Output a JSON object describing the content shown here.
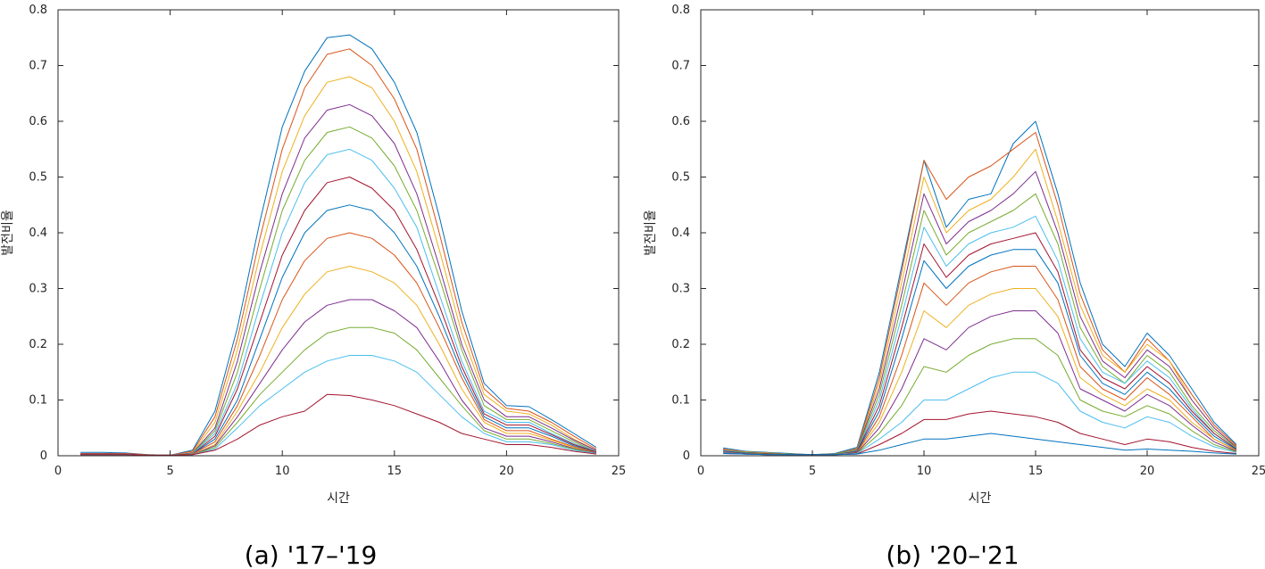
{
  "palette": [
    "#0072BD",
    "#D95319",
    "#EDB120",
    "#7E2F8E",
    "#77AC30",
    "#4DBEEE",
    "#A2142F"
  ],
  "chart_data": [
    {
      "type": "line",
      "caption": "(a) '17–'19",
      "xlabel": "시간",
      "ylabel": "발전비율",
      "xlim": [
        0,
        25
      ],
      "ylim": [
        0,
        0.8
      ],
      "xticks": [
        0,
        5,
        10,
        15,
        20,
        25
      ],
      "yticks": [
        0,
        0.1,
        0.2,
        0.3,
        0.4,
        0.5,
        0.6,
        0.7,
        0.8
      ],
      "x": [
        1,
        2,
        3,
        4,
        5,
        6,
        7,
        8,
        9,
        10,
        11,
        12,
        13,
        14,
        15,
        16,
        17,
        18,
        19,
        20,
        21,
        22,
        23,
        24
      ],
      "series": [
        {
          "values": [
            0.006,
            0.006,
            0.005,
            0.002,
            0.001,
            0.01,
            0.08,
            0.23,
            0.42,
            0.59,
            0.69,
            0.75,
            0.755,
            0.73,
            0.67,
            0.58,
            0.43,
            0.26,
            0.13,
            0.09,
            0.088,
            0.065,
            0.04,
            0.015
          ]
        },
        {
          "values": [
            0.004,
            0.004,
            0.004,
            0.002,
            0.001,
            0.008,
            0.07,
            0.21,
            0.39,
            0.55,
            0.66,
            0.72,
            0.73,
            0.7,
            0.64,
            0.55,
            0.4,
            0.24,
            0.12,
            0.085,
            0.08,
            0.06,
            0.035,
            0.012
          ]
        },
        {
          "values": [
            0.003,
            0.003,
            0.003,
            0.001,
            0.001,
            0.006,
            0.06,
            0.19,
            0.36,
            0.51,
            0.61,
            0.67,
            0.68,
            0.66,
            0.6,
            0.51,
            0.37,
            0.22,
            0.11,
            0.08,
            0.075,
            0.055,
            0.03,
            0.01
          ]
        },
        {
          "values": [
            0.003,
            0.003,
            0.003,
            0.001,
            0.001,
            0.005,
            0.05,
            0.17,
            0.33,
            0.47,
            0.57,
            0.62,
            0.63,
            0.61,
            0.56,
            0.47,
            0.34,
            0.2,
            0.1,
            0.07,
            0.07,
            0.05,
            0.028,
            0.01
          ]
        },
        {
          "values": [
            0.002,
            0.002,
            0.002,
            0.001,
            0.001,
            0.004,
            0.045,
            0.15,
            0.3,
            0.44,
            0.53,
            0.58,
            0.59,
            0.57,
            0.52,
            0.44,
            0.32,
            0.19,
            0.09,
            0.065,
            0.065,
            0.045,
            0.025,
            0.008
          ]
        },
        {
          "values": [
            0.002,
            0.002,
            0.002,
            0.001,
            0.001,
            0.004,
            0.04,
            0.13,
            0.27,
            0.4,
            0.49,
            0.54,
            0.55,
            0.53,
            0.48,
            0.41,
            0.29,
            0.17,
            0.08,
            0.06,
            0.06,
            0.04,
            0.022,
            0.008
          ]
        },
        {
          "values": [
            0.002,
            0.002,
            0.002,
            0.001,
            0.001,
            0.003,
            0.035,
            0.12,
            0.24,
            0.36,
            0.44,
            0.49,
            0.5,
            0.48,
            0.44,
            0.37,
            0.27,
            0.16,
            0.075,
            0.055,
            0.055,
            0.038,
            0.02,
            0.007
          ]
        },
        {
          "values": [
            0.002,
            0.002,
            0.002,
            0.001,
            0.001,
            0.003,
            0.03,
            0.1,
            0.21,
            0.32,
            0.4,
            0.44,
            0.45,
            0.44,
            0.4,
            0.34,
            0.25,
            0.15,
            0.07,
            0.05,
            0.05,
            0.035,
            0.018,
            0.006
          ]
        },
        {
          "values": [
            0.002,
            0.002,
            0.002,
            0.001,
            0.001,
            0.003,
            0.025,
            0.09,
            0.18,
            0.28,
            0.35,
            0.39,
            0.4,
            0.39,
            0.36,
            0.31,
            0.23,
            0.14,
            0.065,
            0.045,
            0.045,
            0.03,
            0.016,
            0.006
          ]
        },
        {
          "values": [
            0.002,
            0.002,
            0.002,
            0.001,
            0.001,
            0.002,
            0.02,
            0.08,
            0.15,
            0.23,
            0.29,
            0.33,
            0.34,
            0.33,
            0.31,
            0.27,
            0.2,
            0.12,
            0.06,
            0.04,
            0.04,
            0.028,
            0.015,
            0.005
          ]
        },
        {
          "values": [
            0.002,
            0.002,
            0.002,
            0.001,
            0.001,
            0.002,
            0.018,
            0.07,
            0.13,
            0.19,
            0.24,
            0.27,
            0.28,
            0.28,
            0.26,
            0.23,
            0.17,
            0.1,
            0.05,
            0.035,
            0.035,
            0.025,
            0.013,
            0.005
          ]
        },
        {
          "values": [
            0.002,
            0.002,
            0.002,
            0.001,
            0.001,
            0.002,
            0.015,
            0.06,
            0.11,
            0.15,
            0.19,
            0.22,
            0.23,
            0.23,
            0.22,
            0.19,
            0.14,
            0.09,
            0.045,
            0.03,
            0.03,
            0.022,
            0.012,
            0.004
          ]
        },
        {
          "values": [
            0.002,
            0.002,
            0.002,
            0.001,
            0.001,
            0.002,
            0.012,
            0.05,
            0.09,
            0.12,
            0.15,
            0.17,
            0.18,
            0.18,
            0.17,
            0.15,
            0.11,
            0.07,
            0.04,
            0.025,
            0.025,
            0.02,
            0.01,
            0.004
          ]
        },
        {
          "values": [
            0.002,
            0.002,
            0.002,
            0.001,
            0.001,
            0.002,
            0.01,
            0.03,
            0.055,
            0.07,
            0.08,
            0.11,
            0.108,
            0.1,
            0.09,
            0.075,
            0.06,
            0.04,
            0.03,
            0.02,
            0.02,
            0.015,
            0.008,
            0.003
          ]
        }
      ]
    },
    {
      "type": "line",
      "caption": "(b) '20–'21",
      "xlabel": "시간",
      "ylabel": "발전비율",
      "xlim": [
        0,
        25
      ],
      "ylim": [
        0,
        0.8
      ],
      "xticks": [
        0,
        5,
        10,
        15,
        20,
        25
      ],
      "yticks": [
        0,
        0.1,
        0.2,
        0.3,
        0.4,
        0.5,
        0.6,
        0.7,
        0.8
      ],
      "x": [
        1,
        2,
        3,
        4,
        5,
        6,
        7,
        8,
        9,
        10,
        11,
        12,
        13,
        14,
        15,
        16,
        17,
        18,
        19,
        20,
        21,
        22,
        23,
        24
      ],
      "series": [
        {
          "values": [
            0.014,
            0.008,
            0.006,
            0.004,
            0.002,
            0.004,
            0.015,
            0.15,
            0.34,
            0.53,
            0.41,
            0.46,
            0.47,
            0.56,
            0.6,
            0.47,
            0.31,
            0.2,
            0.16,
            0.22,
            0.18,
            0.12,
            0.06,
            0.02
          ]
        },
        {
          "values": [
            0.012,
            0.007,
            0.005,
            0.003,
            0.002,
            0.003,
            0.013,
            0.14,
            0.33,
            0.53,
            0.46,
            0.5,
            0.52,
            0.55,
            0.58,
            0.45,
            0.29,
            0.19,
            0.15,
            0.21,
            0.17,
            0.11,
            0.055,
            0.018
          ]
        },
        {
          "values": [
            0.011,
            0.007,
            0.005,
            0.003,
            0.002,
            0.003,
            0.012,
            0.13,
            0.31,
            0.5,
            0.4,
            0.44,
            0.46,
            0.5,
            0.55,
            0.42,
            0.27,
            0.18,
            0.15,
            0.2,
            0.17,
            0.1,
            0.05,
            0.016
          ]
        },
        {
          "values": [
            0.01,
            0.006,
            0.004,
            0.003,
            0.002,
            0.003,
            0.011,
            0.12,
            0.29,
            0.47,
            0.38,
            0.42,
            0.44,
            0.47,
            0.51,
            0.4,
            0.25,
            0.17,
            0.14,
            0.19,
            0.16,
            0.1,
            0.05,
            0.015
          ]
        },
        {
          "values": [
            0.009,
            0.006,
            0.004,
            0.003,
            0.002,
            0.003,
            0.01,
            0.11,
            0.27,
            0.44,
            0.36,
            0.4,
            0.42,
            0.44,
            0.47,
            0.38,
            0.23,
            0.16,
            0.13,
            0.18,
            0.15,
            0.09,
            0.045,
            0.014
          ]
        },
        {
          "values": [
            0.009,
            0.005,
            0.004,
            0.002,
            0.002,
            0.002,
            0.009,
            0.1,
            0.25,
            0.41,
            0.34,
            0.38,
            0.4,
            0.41,
            0.43,
            0.35,
            0.21,
            0.15,
            0.13,
            0.17,
            0.14,
            0.085,
            0.04,
            0.013
          ]
        },
        {
          "values": [
            0.008,
            0.005,
            0.004,
            0.002,
            0.002,
            0.002,
            0.008,
            0.09,
            0.23,
            0.38,
            0.32,
            0.36,
            0.38,
            0.39,
            0.4,
            0.33,
            0.19,
            0.14,
            0.12,
            0.16,
            0.13,
            0.08,
            0.04,
            0.012
          ]
        },
        {
          "values": [
            0.008,
            0.005,
            0.003,
            0.002,
            0.002,
            0.002,
            0.007,
            0.08,
            0.21,
            0.35,
            0.3,
            0.34,
            0.36,
            0.37,
            0.37,
            0.31,
            0.18,
            0.13,
            0.11,
            0.15,
            0.12,
            0.075,
            0.035,
            0.011
          ]
        },
        {
          "values": [
            0.007,
            0.004,
            0.003,
            0.002,
            0.002,
            0.002,
            0.006,
            0.07,
            0.18,
            0.31,
            0.27,
            0.31,
            0.33,
            0.34,
            0.34,
            0.28,
            0.16,
            0.12,
            0.1,
            0.14,
            0.11,
            0.07,
            0.03,
            0.01
          ]
        },
        {
          "values": [
            0.006,
            0.004,
            0.003,
            0.002,
            0.002,
            0.002,
            0.005,
            0.06,
            0.15,
            0.26,
            0.23,
            0.27,
            0.29,
            0.3,
            0.3,
            0.25,
            0.14,
            0.11,
            0.09,
            0.12,
            0.1,
            0.06,
            0.03,
            0.009
          ]
        },
        {
          "values": [
            0.006,
            0.004,
            0.003,
            0.002,
            0.002,
            0.002,
            0.005,
            0.05,
            0.12,
            0.21,
            0.19,
            0.23,
            0.25,
            0.26,
            0.26,
            0.22,
            0.12,
            0.1,
            0.08,
            0.11,
            0.09,
            0.055,
            0.025,
            0.008
          ]
        },
        {
          "values": [
            0.005,
            0.003,
            0.003,
            0.002,
            0.002,
            0.002,
            0.004,
            0.04,
            0.09,
            0.16,
            0.15,
            0.18,
            0.2,
            0.21,
            0.21,
            0.18,
            0.1,
            0.08,
            0.07,
            0.09,
            0.075,
            0.045,
            0.02,
            0.007
          ]
        },
        {
          "values": [
            0.005,
            0.003,
            0.002,
            0.002,
            0.002,
            0.002,
            0.004,
            0.03,
            0.06,
            0.1,
            0.1,
            0.12,
            0.14,
            0.15,
            0.15,
            0.13,
            0.08,
            0.06,
            0.05,
            0.07,
            0.06,
            0.035,
            0.016,
            0.006
          ]
        },
        {
          "values": [
            0.004,
            0.003,
            0.002,
            0.002,
            0.002,
            0.002,
            0.003,
            0.02,
            0.04,
            0.065,
            0.065,
            0.075,
            0.08,
            0.075,
            0.07,
            0.06,
            0.04,
            0.03,
            0.02,
            0.03,
            0.025,
            0.015,
            0.008,
            0.004
          ]
        },
        {
          "values": [
            0.004,
            0.003,
            0.002,
            0.002,
            0.002,
            0.002,
            0.003,
            0.01,
            0.02,
            0.03,
            0.03,
            0.035,
            0.04,
            0.035,
            0.03,
            0.025,
            0.02,
            0.015,
            0.01,
            0.012,
            0.01,
            0.008,
            0.005,
            0.003
          ]
        }
      ]
    }
  ]
}
